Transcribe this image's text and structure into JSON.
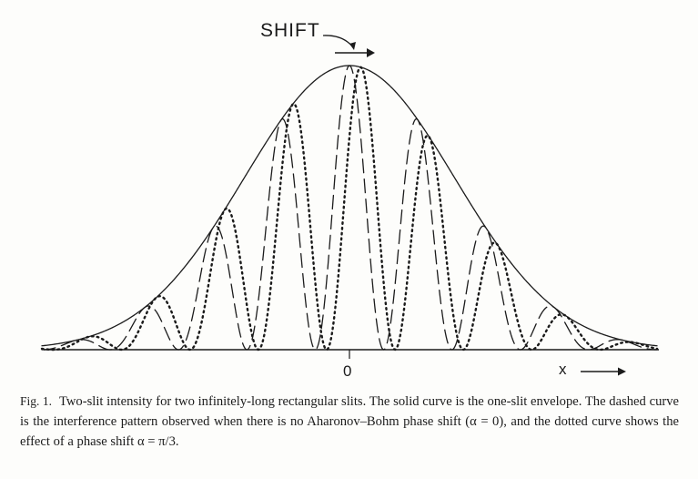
{
  "figure": {
    "shift_label": "SHIFT",
    "origin_label": "0",
    "x_label": "x"
  },
  "caption": {
    "number": "Fig. 1.",
    "text": "Two-slit intensity for two infinitely-long rectangular slits. The solid curve is the one-slit envelope. The dashed curve is the interference pattern observed when there is no Aharonov–Bohm phase shift (α = 0), and the dotted curve shows the effect of a phase shift α = π/3."
  },
  "chart_data": {
    "type": "line",
    "title": "Two-slit intensity for two infinitely-long rectangular slits",
    "xlabel": "x",
    "ylabel": "",
    "x_ticks": [
      "0"
    ],
    "xlim": [
      -1,
      1
    ],
    "ylim": [
      0,
      1
    ],
    "fringe_count_each_side": 4.5,
    "series": [
      {
        "name": "one-slit envelope",
        "style": "solid",
        "formula": "exp(-4.3·x²)"
      },
      {
        "name": "interference pattern, α = 0",
        "style": "dashed",
        "phase_shift": "0",
        "formula": "envelope · cos²(4.5·π·x)"
      },
      {
        "name": "interference pattern, α = π/3",
        "style": "dotted",
        "phase_shift": "π/3",
        "formula": "envelope · cos²(4.5·π·x − π/6)"
      }
    ],
    "annotations": [
      "SHIFT",
      "0",
      "x"
    ]
  }
}
